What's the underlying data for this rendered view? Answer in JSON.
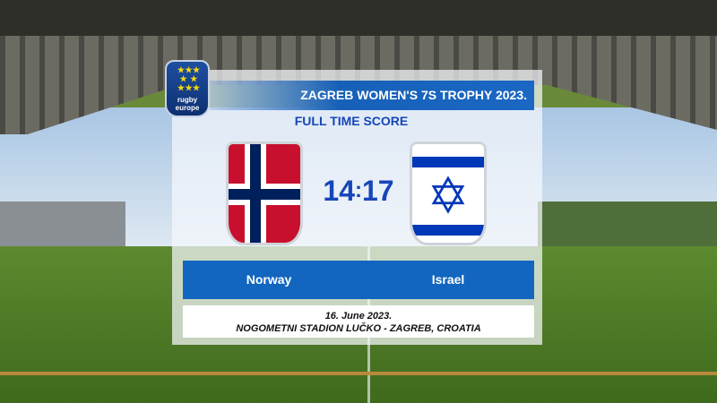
{
  "event_title": "ZAGREB WOMEN'S 7S TROPHY 2023.",
  "subtitle": "FULL TIME SCORE",
  "logo_text": "rugby europe",
  "home": {
    "team": "Norway",
    "score": "14",
    "flag": "norway-flag"
  },
  "away": {
    "team": "Israel",
    "score": "17",
    "flag": "israel-flag"
  },
  "score_separator": ":",
  "date": "16. June 2023.",
  "venue": "NOGOMETNI STADION LUČKO - ZAGREB, CROATIA",
  "colors": {
    "primary_blue": "#1266c0",
    "score_blue": "#1646b8"
  }
}
